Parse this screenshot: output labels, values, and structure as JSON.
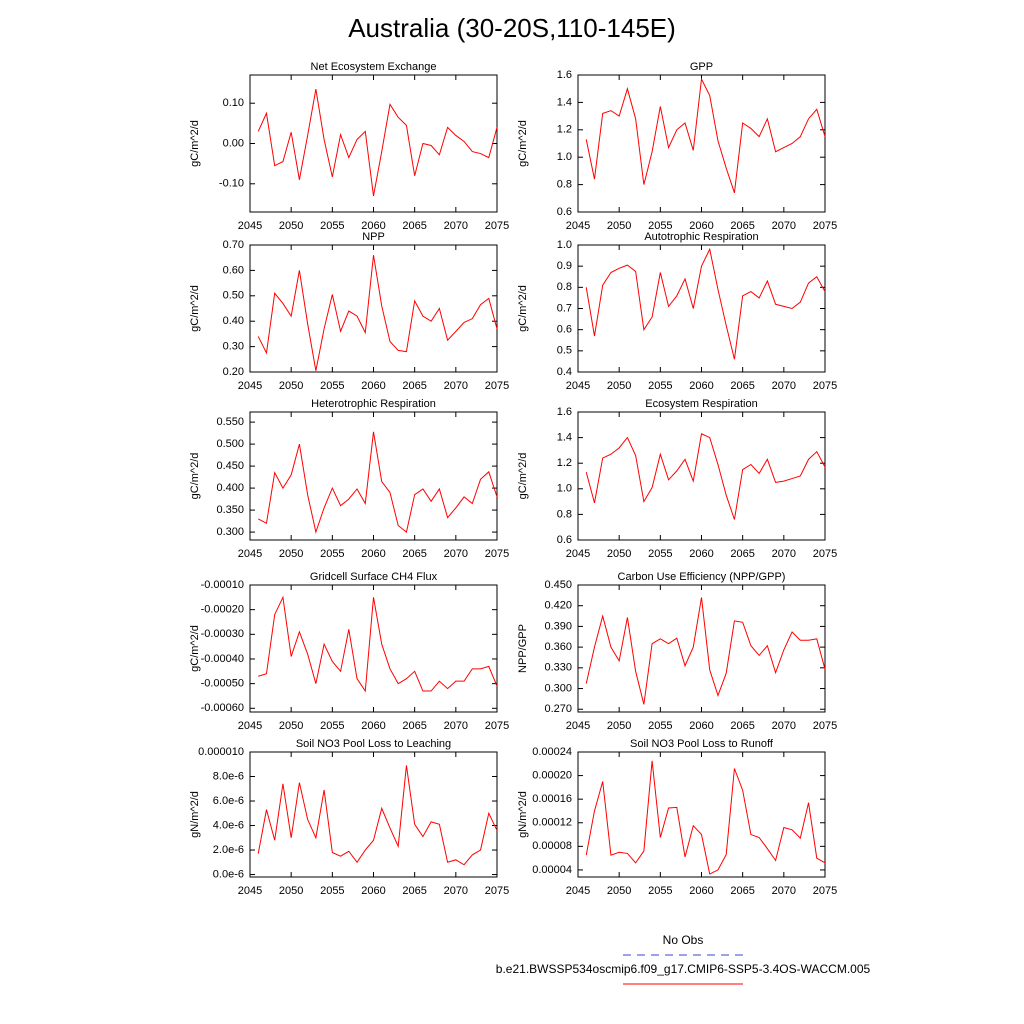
{
  "title": "Australia (30-20S,110-145E)",
  "legend": [
    {
      "label": "No Obs",
      "color": "#3344cc",
      "dash": true
    },
    {
      "label": "b.e21.BWSSP534oscmip6.f09_g17.CMIP6-SSP5-3.4OS-WACCM.005",
      "color": "#ff0000",
      "dash": false
    }
  ],
  "chart_data": [
    {
      "type": "line",
      "title": "Net Ecosystem Exchange",
      "ylabel": "gC/m^2/d",
      "color": "#ff0000",
      "x": [
        2046,
        2047,
        2048,
        2049,
        2050,
        2051,
        2052,
        2053,
        2054,
        2055,
        2056,
        2057,
        2058,
        2059,
        2060,
        2061,
        2062,
        2063,
        2064,
        2065,
        2066,
        2067,
        2068,
        2069,
        2070,
        2071,
        2072,
        2073,
        2074,
        2075
      ],
      "values": [
        0.03,
        0.075,
        -0.055,
        -0.045,
        0.028,
        -0.09,
        0.02,
        0.135,
        0.01,
        -0.083,
        0.022,
        -0.035,
        0.01,
        0.03,
        -0.13,
        -0.02,
        0.097,
        0.065,
        0.045,
        -0.08,
        0.0,
        -0.005,
        -0.028,
        0.04,
        0.02,
        0.005,
        -0.02,
        -0.025,
        -0.035,
        0.04
      ],
      "xlim": [
        2045,
        2075
      ],
      "xticks": [
        2045,
        2050,
        2055,
        2060,
        2065,
        2070,
        2075
      ],
      "ylim": [
        -0.17,
        0.17
      ],
      "yticks": [
        {
          "value": -0.1,
          "label": "-0.10"
        },
        {
          "value": 0,
          "label": "0.00"
        },
        {
          "value": 0.1,
          "label": "0.10"
        }
      ]
    },
    {
      "type": "line",
      "title": "GPP",
      "ylabel": "gC/m^2/d",
      "color": "#ff0000",
      "x": [
        2046,
        2047,
        2048,
        2049,
        2050,
        2051,
        2052,
        2053,
        2054,
        2055,
        2056,
        2057,
        2058,
        2059,
        2060,
        2061,
        2062,
        2063,
        2064,
        2065,
        2066,
        2067,
        2068,
        2069,
        2070,
        2071,
        2072,
        2073,
        2074,
        2075
      ],
      "values": [
        1.13,
        0.84,
        1.32,
        1.34,
        1.3,
        1.5,
        1.28,
        0.8,
        1.04,
        1.37,
        1.07,
        1.2,
        1.25,
        1.05,
        1.57,
        1.45,
        1.12,
        0.92,
        0.74,
        1.25,
        1.21,
        1.15,
        1.28,
        1.04,
        1.07,
        1.1,
        1.15,
        1.28,
        1.35,
        1.15
      ],
      "xlim": [
        2045,
        2075
      ],
      "xticks": [
        2045,
        2050,
        2055,
        2060,
        2065,
        2070,
        2075
      ],
      "ylim": [
        0.6,
        1.6
      ],
      "yticks": [
        0.6,
        0.8,
        {
          "value": 1,
          "label": "1.0"
        },
        1.2,
        1.4,
        1.6
      ]
    },
    {
      "type": "line",
      "title": "NPP",
      "ylabel": "gC/m^2/d",
      "color": "#ff0000",
      "x": [
        2046,
        2047,
        2048,
        2049,
        2050,
        2051,
        2052,
        2053,
        2054,
        2055,
        2056,
        2057,
        2058,
        2059,
        2060,
        2061,
        2062,
        2063,
        2064,
        2065,
        2066,
        2067,
        2068,
        2069,
        2070,
        2071,
        2072,
        2073,
        2074,
        2075
      ],
      "values": [
        0.34,
        0.275,
        0.51,
        0.47,
        0.42,
        0.6,
        0.39,
        0.205,
        0.37,
        0.505,
        0.36,
        0.44,
        0.42,
        0.355,
        0.66,
        0.46,
        0.32,
        0.285,
        0.28,
        0.48,
        0.42,
        0.4,
        0.45,
        0.325,
        0.36,
        0.395,
        0.41,
        0.465,
        0.49,
        0.37
      ],
      "xlim": [
        2045,
        2075
      ],
      "xticks": [
        2045,
        2050,
        2055,
        2060,
        2065,
        2070,
        2075
      ],
      "ylim": [
        0.2,
        0.7
      ],
      "yticks": [
        {
          "value": 0.2,
          "label": "0.20"
        },
        {
          "value": 0.3,
          "label": "0.30"
        },
        {
          "value": 0.4,
          "label": "0.40"
        },
        {
          "value": 0.5,
          "label": "0.50"
        },
        {
          "value": 0.6,
          "label": "0.60"
        },
        {
          "value": 0.7,
          "label": "0.70"
        }
      ]
    },
    {
      "type": "line",
      "title": "Autotrophic Respiration",
      "ylabel": "gC/m^2/d",
      "color": "#ff0000",
      "x": [
        2046,
        2047,
        2048,
        2049,
        2050,
        2051,
        2052,
        2053,
        2054,
        2055,
        2056,
        2057,
        2058,
        2059,
        2060,
        2061,
        2062,
        2063,
        2064,
        2065,
        2066,
        2067,
        2068,
        2069,
        2070,
        2071,
        2072,
        2073,
        2074,
        2075
      ],
      "values": [
        0.8,
        0.57,
        0.81,
        0.87,
        0.89,
        0.905,
        0.875,
        0.6,
        0.66,
        0.87,
        0.71,
        0.76,
        0.84,
        0.7,
        0.9,
        0.98,
        0.79,
        0.62,
        0.46,
        0.76,
        0.78,
        0.75,
        0.83,
        0.72,
        0.71,
        0.7,
        0.73,
        0.82,
        0.85,
        0.78
      ],
      "xlim": [
        2045,
        2075
      ],
      "xticks": [
        2045,
        2050,
        2055,
        2060,
        2065,
        2070,
        2075
      ],
      "ylim": [
        0.4,
        1.0
      ],
      "yticks": [
        0.4,
        0.5,
        0.6,
        0.7,
        0.8,
        0.9,
        {
          "value": 1,
          "label": "1.0"
        }
      ]
    },
    {
      "type": "line",
      "title": "Heterotrophic Respiration",
      "ylabel": "gC/m^2/d",
      "color": "#ff0000",
      "x": [
        2046,
        2047,
        2048,
        2049,
        2050,
        2051,
        2052,
        2053,
        2054,
        2055,
        2056,
        2057,
        2058,
        2059,
        2060,
        2061,
        2062,
        2063,
        2064,
        2065,
        2066,
        2067,
        2068,
        2069,
        2070,
        2071,
        2072,
        2073,
        2074,
        2075
      ],
      "values": [
        0.33,
        0.32,
        0.435,
        0.4,
        0.43,
        0.5,
        0.385,
        0.3,
        0.355,
        0.4,
        0.36,
        0.375,
        0.398,
        0.365,
        0.528,
        0.415,
        0.39,
        0.315,
        0.3,
        0.385,
        0.398,
        0.37,
        0.398,
        0.333,
        0.355,
        0.38,
        0.365,
        0.42,
        0.437,
        0.38
      ],
      "xlim": [
        2045,
        2075
      ],
      "xticks": [
        2045,
        2050,
        2055,
        2060,
        2065,
        2070,
        2075
      ],
      "ylim": [
        0.282,
        0.573
      ],
      "yticks": [
        {
          "value": 0.3,
          "label": "0.300"
        },
        {
          "value": 0.35,
          "label": "0.350"
        },
        {
          "value": 0.4,
          "label": "0.400"
        },
        {
          "value": 0.45,
          "label": "0.450"
        },
        {
          "value": 0.5,
          "label": "0.500"
        },
        {
          "value": 0.55,
          "label": "0.550"
        }
      ]
    },
    {
      "type": "line",
      "title": "Ecosystem Respiration",
      "ylabel": "gC/m^2/d",
      "color": "#ff0000",
      "x": [
        2046,
        2047,
        2048,
        2049,
        2050,
        2051,
        2052,
        2053,
        2054,
        2055,
        2056,
        2057,
        2058,
        2059,
        2060,
        2061,
        2062,
        2063,
        2064,
        2065,
        2066,
        2067,
        2068,
        2069,
        2070,
        2071,
        2072,
        2073,
        2074,
        2075
      ],
      "values": [
        1.13,
        0.89,
        1.24,
        1.27,
        1.32,
        1.4,
        1.26,
        0.9,
        1.01,
        1.27,
        1.07,
        1.14,
        1.23,
        1.06,
        1.43,
        1.4,
        1.19,
        0.95,
        0.76,
        1.15,
        1.19,
        1.12,
        1.23,
        1.05,
        1.06,
        1.08,
        1.1,
        1.23,
        1.29,
        1.17
      ],
      "xlim": [
        2045,
        2075
      ],
      "xticks": [
        2045,
        2050,
        2055,
        2060,
        2065,
        2070,
        2075
      ],
      "ylim": [
        0.6,
        1.6
      ],
      "yticks": [
        0.6,
        0.8,
        {
          "value": 1,
          "label": "1.0"
        },
        1.2,
        1.4,
        1.6
      ]
    },
    {
      "type": "line",
      "title": "Gridcell Surface CH4 Flux",
      "ylabel": "gC/m^2/d",
      "color": "#ff0000",
      "x": [
        2046,
        2047,
        2048,
        2049,
        2050,
        2051,
        2052,
        2053,
        2054,
        2055,
        2056,
        2057,
        2058,
        2059,
        2060,
        2061,
        2062,
        2063,
        2064,
        2065,
        2066,
        2067,
        2068,
        2069,
        2070,
        2071,
        2072,
        2073,
        2074,
        2075
      ],
      "values": [
        -0.00047,
        -0.00046,
        -0.00022,
        -0.00015,
        -0.00039,
        -0.00029,
        -0.00038,
        -0.0005,
        -0.00034,
        -0.00041,
        -0.00045,
        -0.00028,
        -0.00048,
        -0.00053,
        -0.00015,
        -0.00034,
        -0.00044,
        -0.0005,
        -0.00048,
        -0.00045,
        -0.00053,
        -0.00053,
        -0.00049,
        -0.00052,
        -0.00049,
        -0.00049,
        -0.00044,
        -0.00044,
        -0.00043,
        -0.00051
      ],
      "xlim": [
        2045,
        2075
      ],
      "xticks": [
        2045,
        2050,
        2055,
        2060,
        2065,
        2070,
        2075
      ],
      "ylim": [
        -0.000615,
        -0.0001
      ],
      "yticks": [
        {
          "value": -0.0006,
          "label": "-0.00060"
        },
        {
          "value": -0.0005,
          "label": "-0.00050"
        },
        {
          "value": -0.0004,
          "label": "-0.00040"
        },
        {
          "value": -0.0003,
          "label": "-0.00030"
        },
        {
          "value": -0.0002,
          "label": "-0.00020"
        },
        {
          "value": -0.0001,
          "label": "-0.00010"
        }
      ]
    },
    {
      "type": "line",
      "title": "Carbon Use Efficiency (NPP/GPP)",
      "ylabel": "NPP/GPP",
      "color": "#ff0000",
      "x": [
        2046,
        2047,
        2048,
        2049,
        2050,
        2051,
        2052,
        2053,
        2054,
        2055,
        2056,
        2057,
        2058,
        2059,
        2060,
        2061,
        2062,
        2063,
        2064,
        2065,
        2066,
        2067,
        2068,
        2069,
        2070,
        2071,
        2072,
        2073,
        2074,
        2075
      ],
      "values": [
        0.307,
        0.36,
        0.405,
        0.36,
        0.34,
        0.403,
        0.325,
        0.277,
        0.365,
        0.372,
        0.365,
        0.373,
        0.333,
        0.36,
        0.432,
        0.327,
        0.29,
        0.322,
        0.398,
        0.396,
        0.362,
        0.348,
        0.362,
        0.323,
        0.356,
        0.382,
        0.37,
        0.37,
        0.372,
        0.328
      ],
      "xlim": [
        2045,
        2075
      ],
      "xticks": [
        2045,
        2050,
        2055,
        2060,
        2065,
        2070,
        2075
      ],
      "ylim": [
        0.266,
        0.45
      ],
      "yticks": [
        {
          "value": 0.27,
          "label": "0.270"
        },
        {
          "value": 0.3,
          "label": "0.300"
        },
        {
          "value": 0.33,
          "label": "0.330"
        },
        {
          "value": 0.36,
          "label": "0.360"
        },
        {
          "value": 0.39,
          "label": "0.390"
        },
        {
          "value": 0.42,
          "label": "0.420"
        },
        {
          "value": 0.45,
          "label": "0.450"
        }
      ]
    },
    {
      "type": "line",
      "title": "Soil NO3 Pool Loss to Leaching",
      "ylabel": "gN/m^2/d",
      "color": "#ff0000",
      "x": [
        2046,
        2047,
        2048,
        2049,
        2050,
        2051,
        2052,
        2053,
        2054,
        2055,
        2056,
        2057,
        2058,
        2059,
        2060,
        2061,
        2062,
        2063,
        2064,
        2065,
        2066,
        2067,
        2068,
        2069,
        2070,
        2071,
        2072,
        2073,
        2074,
        2075
      ],
      "values": [
        1.7e-06,
        5.3e-06,
        2.8e-06,
        7.4e-06,
        3e-06,
        7.5e-06,
        4.5e-06,
        3e-06,
        6.9e-06,
        1.8e-06,
        1.5e-06,
        1.9e-06,
        1e-06,
        2e-06,
        2.8e-06,
        5.4e-06,
        3.8e-06,
        2.3e-06,
        8.9e-06,
        4.1e-06,
        3.1e-06,
        4.3e-06,
        4.1e-06,
        1e-06,
        1.2e-06,
        8e-07,
        1.6e-06,
        2e-06,
        5e-06,
        3.6e-06
      ],
      "xlim": [
        2045,
        2075
      ],
      "xticks": [
        2045,
        2050,
        2055,
        2060,
        2065,
        2070,
        2075
      ],
      "ylim": [
        -2e-07,
        1e-05
      ],
      "yticks": [
        {
          "value": 0,
          "label": "0.0e-6"
        },
        {
          "value": 2e-06,
          "label": "2.0e-6"
        },
        {
          "value": 4e-06,
          "label": "4.0e-6"
        },
        {
          "value": 6e-06,
          "label": "6.0e-6"
        },
        {
          "value": 8e-06,
          "label": "8.0e-6"
        },
        {
          "value": 1e-05,
          "label": "0.000010"
        }
      ]
    },
    {
      "type": "line",
      "title": "Soil NO3 Pool Loss to Runoff",
      "ylabel": "gN/m^2/d",
      "color": "#ff0000",
      "x": [
        2046,
        2047,
        2048,
        2049,
        2050,
        2051,
        2052,
        2053,
        2054,
        2055,
        2056,
        2057,
        2058,
        2059,
        2060,
        2061,
        2062,
        2063,
        2064,
        2065,
        2066,
        2067,
        2068,
        2069,
        2070,
        2071,
        2072,
        2073,
        2074,
        2075
      ],
      "values": [
        6.5e-05,
        0.00014,
        0.00019,
        6.5e-05,
        7e-05,
        6.8e-05,
        5.2e-05,
        7.2e-05,
        0.000225,
        9.5e-05,
        0.000145,
        0.000146,
        6.2e-05,
        0.000115,
        0.0001,
        3.3e-05,
        4e-05,
        6.6e-05,
        0.000212,
        0.000175,
        0.0001,
        9.5e-05,
        7.6e-05,
        5.6e-05,
        0.000112,
        0.000108,
        9.4e-05,
        0.000154,
        6e-05,
        5.2e-05
      ],
      "xlim": [
        2045,
        2075
      ],
      "xticks": [
        2045,
        2050,
        2055,
        2060,
        2065,
        2070,
        2075
      ],
      "ylim": [
        2.8e-05,
        0.00024
      ],
      "yticks": [
        4e-05,
        8e-05,
        0.00012,
        0.00016,
        {
          "value": 0.0002,
          "label": "0.00020"
        },
        0.00024
      ]
    }
  ]
}
